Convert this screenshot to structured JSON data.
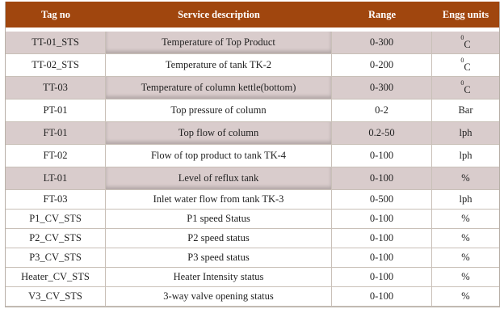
{
  "table": {
    "headers": [
      "Tag no",
      "Service description",
      "Range",
      "Engg units"
    ],
    "rows": [
      {
        "tag": "TT-01_STS",
        "desc": "Temperature of  Top Product",
        "range": "0-300",
        "unit_sup": "0",
        "unit": "C"
      },
      {
        "tag": "TT-02_STS",
        "desc": "Temperature of tank TK-2",
        "range": "0-200",
        "unit_sup": "0",
        "unit": "C"
      },
      {
        "tag": "TT-03",
        "desc": "Temperature  of column kettle(bottom)",
        "range": "0-300",
        "unit_sup": "0",
        "unit": "C"
      },
      {
        "tag": "PT-01",
        "desc": "Top pressure of column",
        "range": "0-2",
        "unit": "Bar"
      },
      {
        "tag": "FT-01",
        "desc": "Top flow of column",
        "range": "0.2-50",
        "unit": "lph"
      },
      {
        "tag": "FT-02",
        "desc": "Flow of top product to tank TK-4",
        "range": "0-100",
        "unit": "lph"
      },
      {
        "tag": "LT-01",
        "desc": "Level of reflux tank",
        "range": "0-100",
        "unit": "%"
      },
      {
        "tag": "FT-03",
        "desc": "Inlet water flow from tank TK-3",
        "range": "0-500",
        "unit": "lph"
      },
      {
        "tag": "P1_CV_STS",
        "desc": "P1 speed Status",
        "range": "0-100",
        "unit": "%"
      },
      {
        "tag": "P2_CV_STS",
        "desc": "P2 speed status",
        "range": "0-100",
        "unit": "%"
      },
      {
        "tag": "P3_CV_STS",
        "desc": "P3 speed status",
        "range": "0-100",
        "unit": "%"
      },
      {
        "tag": "Heater_CV_STS",
        "desc": "Heater Intensity status",
        "range": "0-100",
        "unit": "%"
      },
      {
        "tag": "V3_CV_STS",
        "desc": "3-way valve opening status",
        "range": "0-100",
        "unit": "%"
      }
    ]
  },
  "colors": {
    "header_bg": "#a0460e",
    "header_text": "#ffffff",
    "shaded_row": "#d9cccc"
  }
}
